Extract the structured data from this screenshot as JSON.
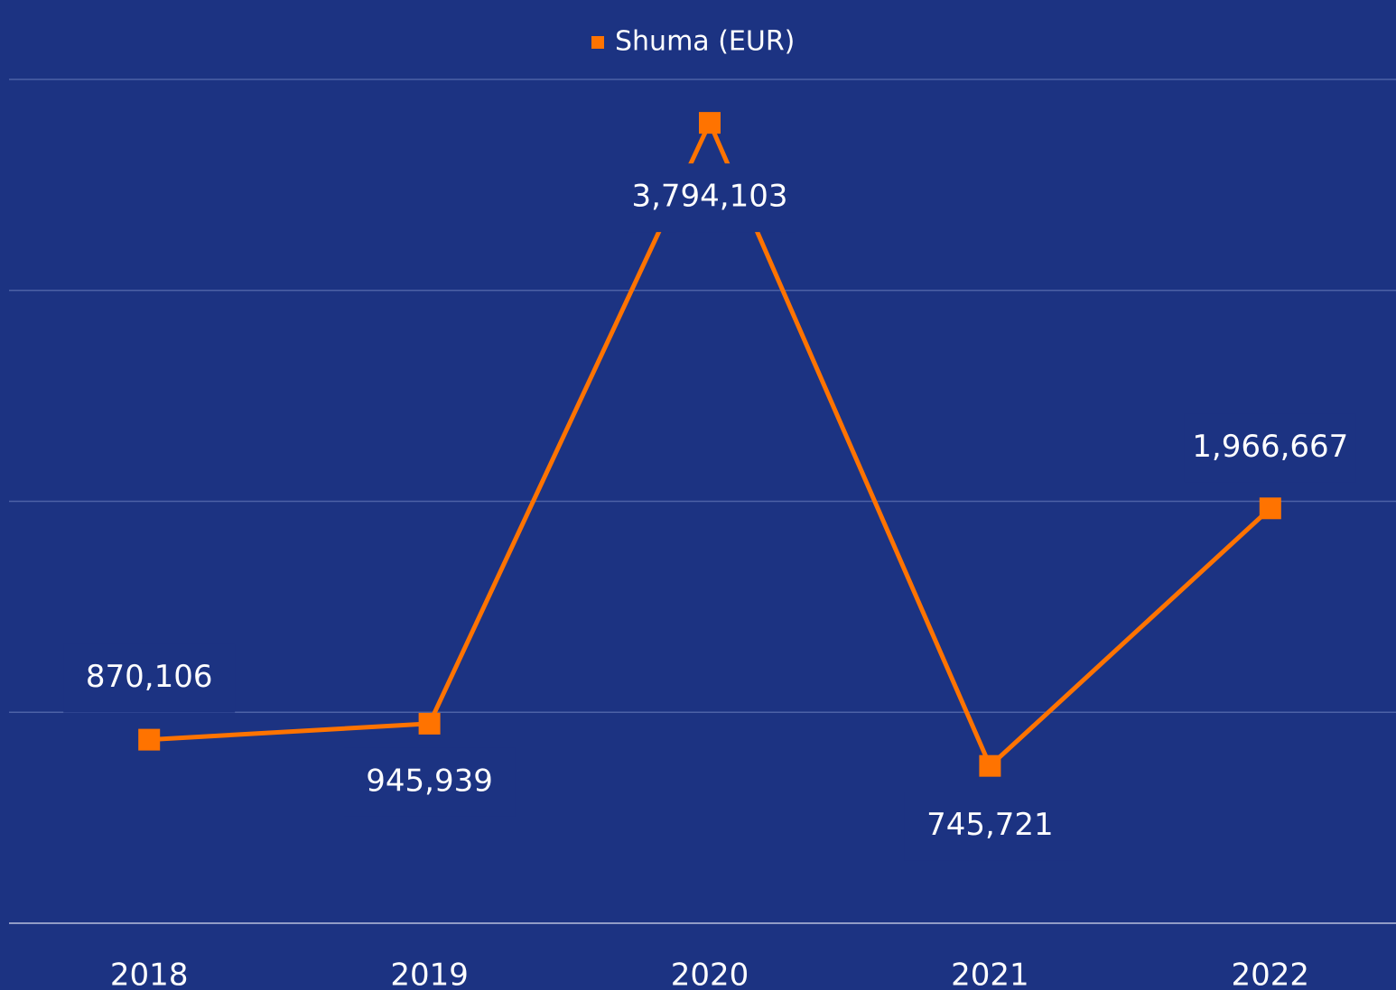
{
  "chart_data": {
    "type": "line",
    "categories": [
      "2018",
      "2019",
      "2020",
      "2021",
      "2022"
    ],
    "series": [
      {
        "name": "Shuma (EUR)",
        "color": "#ff7300",
        "values": [
          870106,
          945939,
          3794103,
          745721,
          1966667
        ],
        "value_labels": [
          "870,106",
          "945,939",
          "3,794,103",
          "745,721",
          "1,966,667"
        ]
      }
    ],
    "ylim": [
      0,
      4000000
    ],
    "yticks": [
      0,
      1000000,
      2000000,
      3000000,
      4000000
    ],
    "grid": true,
    "legend": "top"
  }
}
